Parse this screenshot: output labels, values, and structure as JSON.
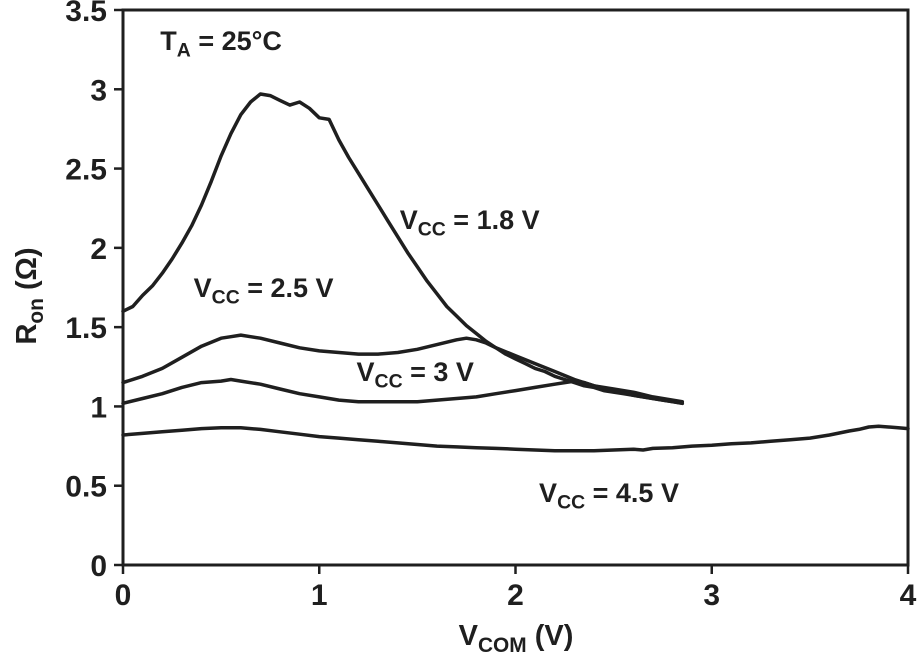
{
  "chart_data": {
    "type": "line",
    "title": "",
    "xlabel": {
      "pre": "V",
      "sub": "COM",
      "post": " (V)"
    },
    "ylabel": {
      "pre": "R",
      "sub": "on",
      "post": " (Ω)"
    },
    "xlim": [
      0,
      4
    ],
    "ylim": [
      0,
      3.5
    ],
    "xticks": [
      0,
      1,
      2,
      3,
      4
    ],
    "yticks": [
      0,
      0.5,
      1,
      1.5,
      2,
      2.5,
      3,
      3.5
    ],
    "xtick_labels": [
      "0",
      "1",
      "2",
      "3",
      "4"
    ],
    "ytick_labels": [
      "0",
      "0.5",
      "1",
      "1.5",
      "2",
      "2.5",
      "3",
      "3.5"
    ],
    "grid": false,
    "line_color": "#1f1f1f",
    "legend_position": "inline-annotations",
    "annotations": [
      {
        "name": "condition-ta",
        "pre": "T",
        "sub": "A",
        "post": " = 25°C",
        "x": 0.19,
        "y": 3.4
      },
      {
        "name": "label-vcc-1v8",
        "pre": "V",
        "sub": "CC",
        "post": " = 1.8 V",
        "x": 1.41,
        "y": 2.27
      },
      {
        "name": "label-vcc-2v5",
        "pre": "V",
        "sub": "CC",
        "post": " = 2.5 V",
        "x": 0.36,
        "y": 1.84
      },
      {
        "name": "label-vcc-3v",
        "pre": "V",
        "sub": "CC",
        "post": " = 3 V",
        "x": 1.19,
        "y": 1.31
      },
      {
        "name": "label-vcc-4v5",
        "pre": "V",
        "sub": "CC",
        "post": " = 4.5 V",
        "x": 2.12,
        "y": 0.55
      }
    ],
    "series": [
      {
        "name": "VCC = 1.8 V",
        "points": [
          [
            0,
            1.6
          ],
          [
            0.05,
            1.63
          ],
          [
            0.1,
            1.7
          ],
          [
            0.15,
            1.76
          ],
          [
            0.2,
            1.84
          ],
          [
            0.25,
            1.93
          ],
          [
            0.3,
            2.03
          ],
          [
            0.35,
            2.14
          ],
          [
            0.4,
            2.27
          ],
          [
            0.45,
            2.42
          ],
          [
            0.5,
            2.58
          ],
          [
            0.55,
            2.72
          ],
          [
            0.6,
            2.84
          ],
          [
            0.65,
            2.92
          ],
          [
            0.7,
            2.97
          ],
          [
            0.75,
            2.96
          ],
          [
            0.8,
            2.93
          ],
          [
            0.85,
            2.9
          ],
          [
            0.9,
            2.92
          ],
          [
            0.95,
            2.88
          ],
          [
            1.0,
            2.82
          ],
          [
            1.05,
            2.81
          ],
          [
            1.1,
            2.68
          ],
          [
            1.15,
            2.57
          ],
          [
            1.2,
            2.47
          ],
          [
            1.25,
            2.37
          ],
          [
            1.3,
            2.27
          ],
          [
            1.35,
            2.17
          ],
          [
            1.4,
            2.07
          ],
          [
            1.45,
            1.97
          ],
          [
            1.5,
            1.88
          ],
          [
            1.55,
            1.79
          ],
          [
            1.6,
            1.71
          ],
          [
            1.65,
            1.63
          ],
          [
            1.7,
            1.57
          ],
          [
            1.75,
            1.51
          ],
          [
            1.8,
            1.46
          ],
          [
            1.85,
            1.41
          ],
          [
            1.9,
            1.37
          ],
          [
            1.95,
            1.33
          ],
          [
            2.0,
            1.3
          ],
          [
            2.05,
            1.27
          ],
          [
            2.1,
            1.24
          ],
          [
            2.15,
            1.22
          ],
          [
            2.2,
            1.19
          ],
          [
            2.25,
            1.17
          ],
          [
            2.3,
            1.15
          ],
          [
            2.35,
            1.13
          ],
          [
            2.4,
            1.12
          ],
          [
            2.45,
            1.1
          ],
          [
            2.5,
            1.09
          ],
          [
            2.55,
            1.08
          ],
          [
            2.6,
            1.07
          ],
          [
            2.65,
            1.06
          ],
          [
            2.7,
            1.05
          ],
          [
            2.75,
            1.04
          ],
          [
            2.8,
            1.03
          ],
          [
            2.85,
            1.02
          ]
        ]
      },
      {
        "name": "VCC = 2.5 V",
        "points": [
          [
            0,
            1.15
          ],
          [
            0.1,
            1.19
          ],
          [
            0.2,
            1.24
          ],
          [
            0.3,
            1.31
          ],
          [
            0.4,
            1.38
          ],
          [
            0.5,
            1.43
          ],
          [
            0.55,
            1.44
          ],
          [
            0.6,
            1.45
          ],
          [
            0.65,
            1.44
          ],
          [
            0.7,
            1.43
          ],
          [
            0.8,
            1.4
          ],
          [
            0.9,
            1.37
          ],
          [
            1.0,
            1.35
          ],
          [
            1.1,
            1.34
          ],
          [
            1.2,
            1.33
          ],
          [
            1.3,
            1.33
          ],
          [
            1.4,
            1.34
          ],
          [
            1.5,
            1.36
          ],
          [
            1.6,
            1.39
          ],
          [
            1.7,
            1.42
          ],
          [
            1.75,
            1.43
          ],
          [
            1.8,
            1.42
          ],
          [
            1.85,
            1.4
          ],
          [
            1.9,
            1.37
          ],
          [
            2.0,
            1.32
          ],
          [
            2.1,
            1.27
          ],
          [
            2.2,
            1.22
          ],
          [
            2.3,
            1.17
          ],
          [
            2.4,
            1.13
          ],
          [
            2.5,
            1.11
          ],
          [
            2.6,
            1.09
          ],
          [
            2.7,
            1.06
          ],
          [
            2.8,
            1.04
          ],
          [
            2.85,
            1.03
          ]
        ]
      },
      {
        "name": "VCC = 3 V",
        "points": [
          [
            0,
            1.02
          ],
          [
            0.1,
            1.05
          ],
          [
            0.2,
            1.08
          ],
          [
            0.3,
            1.12
          ],
          [
            0.4,
            1.15
          ],
          [
            0.5,
            1.16
          ],
          [
            0.55,
            1.17
          ],
          [
            0.6,
            1.16
          ],
          [
            0.7,
            1.14
          ],
          [
            0.8,
            1.11
          ],
          [
            0.9,
            1.08
          ],
          [
            1.0,
            1.06
          ],
          [
            1.1,
            1.04
          ],
          [
            1.2,
            1.03
          ],
          [
            1.3,
            1.03
          ],
          [
            1.4,
            1.03
          ],
          [
            1.5,
            1.03
          ],
          [
            1.6,
            1.04
          ],
          [
            1.7,
            1.05
          ],
          [
            1.8,
            1.06
          ],
          [
            1.9,
            1.08
          ],
          [
            2.0,
            1.1
          ],
          [
            2.1,
            1.12
          ],
          [
            2.2,
            1.14
          ],
          [
            2.3,
            1.16
          ],
          [
            2.35,
            1.15
          ],
          [
            2.4,
            1.13
          ],
          [
            2.5,
            1.1
          ],
          [
            2.6,
            1.07
          ],
          [
            2.7,
            1.05
          ],
          [
            2.8,
            1.03
          ],
          [
            2.85,
            1.02
          ]
        ]
      },
      {
        "name": "VCC = 4.5 V",
        "points": [
          [
            0,
            0.82
          ],
          [
            0.1,
            0.83
          ],
          [
            0.2,
            0.84
          ],
          [
            0.3,
            0.85
          ],
          [
            0.4,
            0.86
          ],
          [
            0.5,
            0.865
          ],
          [
            0.6,
            0.865
          ],
          [
            0.7,
            0.855
          ],
          [
            0.8,
            0.84
          ],
          [
            0.9,
            0.825
          ],
          [
            1.0,
            0.81
          ],
          [
            1.1,
            0.8
          ],
          [
            1.2,
            0.79
          ],
          [
            1.3,
            0.78
          ],
          [
            1.4,
            0.77
          ],
          [
            1.5,
            0.76
          ],
          [
            1.6,
            0.75
          ],
          [
            1.7,
            0.745
          ],
          [
            1.8,
            0.74
          ],
          [
            1.9,
            0.735
          ],
          [
            2.0,
            0.73
          ],
          [
            2.1,
            0.725
          ],
          [
            2.2,
            0.72
          ],
          [
            2.3,
            0.72
          ],
          [
            2.4,
            0.72
          ],
          [
            2.5,
            0.725
          ],
          [
            2.6,
            0.73
          ],
          [
            2.65,
            0.725
          ],
          [
            2.7,
            0.735
          ],
          [
            2.8,
            0.74
          ],
          [
            2.9,
            0.75
          ],
          [
            3.0,
            0.755
          ],
          [
            3.1,
            0.765
          ],
          [
            3.2,
            0.77
          ],
          [
            3.3,
            0.78
          ],
          [
            3.4,
            0.79
          ],
          [
            3.5,
            0.8
          ],
          [
            3.6,
            0.82
          ],
          [
            3.7,
            0.845
          ],
          [
            3.75,
            0.855
          ],
          [
            3.8,
            0.87
          ],
          [
            3.85,
            0.875
          ],
          [
            3.9,
            0.87
          ],
          [
            3.95,
            0.865
          ],
          [
            4.0,
            0.86
          ]
        ]
      }
    ]
  }
}
